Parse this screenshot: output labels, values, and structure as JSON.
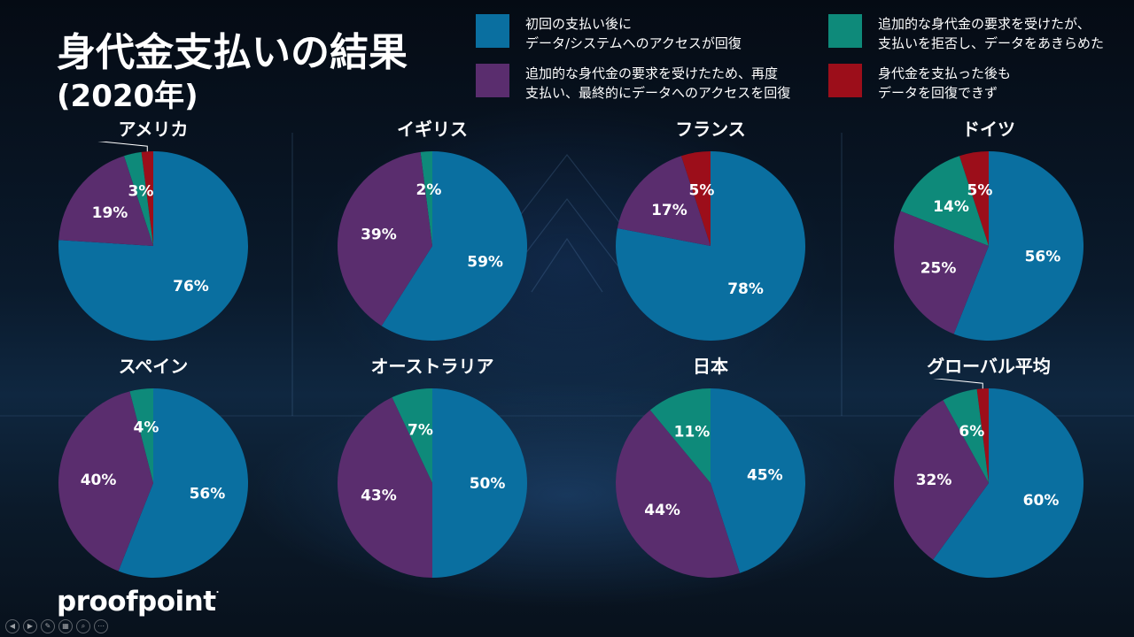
{
  "title": "身代金支払いの結果",
  "subtitle": "(2020年)",
  "colors": {
    "recovered": "#0a6fa0",
    "paid_more_recovered": "#5a2d6e",
    "refused_more": "#0e8a7a",
    "not_recovered": "#9c0e1a"
  },
  "legend": [
    {
      "key": "recovered",
      "lines": [
        "初回の支払い後に",
        "データ/システムへのアクセスが回復"
      ]
    },
    {
      "key": "refused_more",
      "lines": [
        "追加的な身代金の要求を受けたが、",
        "支払いを拒否し、データをあきらめた"
      ]
    },
    {
      "key": "paid_more_recovered",
      "lines": [
        "追加的な身代金の要求を受けたため、再度",
        "支払い、最終的にデータへのアクセスを回復"
      ]
    },
    {
      "key": "not_recovered",
      "lines": [
        "身代金を支払った後も",
        "データを回復できず"
      ]
    }
  ],
  "chart_data": [
    {
      "type": "pie",
      "title": "アメリカ",
      "series_keys": [
        "recovered",
        "paid_more_recovered",
        "refused_more",
        "not_recovered"
      ],
      "values": [
        76,
        19,
        3,
        2
      ],
      "labels": [
        "76%",
        "19%",
        "3%",
        "2%"
      ]
    },
    {
      "type": "pie",
      "title": "イギリス",
      "series_keys": [
        "recovered",
        "paid_more_recovered",
        "refused_more"
      ],
      "values": [
        59,
        39,
        2
      ],
      "labels": [
        "59%",
        "39%",
        "2%"
      ]
    },
    {
      "type": "pie",
      "title": "フランス",
      "series_keys": [
        "recovered",
        "paid_more_recovered",
        "not_recovered"
      ],
      "values": [
        78,
        17,
        5
      ],
      "labels": [
        "78%",
        "17%",
        "5%"
      ]
    },
    {
      "type": "pie",
      "title": "ドイツ",
      "series_keys": [
        "recovered",
        "paid_more_recovered",
        "refused_more",
        "not_recovered"
      ],
      "values": [
        56,
        25,
        14,
        5
      ],
      "labels": [
        "56%",
        "25%",
        "14%",
        "5%"
      ]
    },
    {
      "type": "pie",
      "title": "スペイン",
      "series_keys": [
        "recovered",
        "paid_more_recovered",
        "refused_more"
      ],
      "values": [
        56,
        40,
        4
      ],
      "labels": [
        "56%",
        "40%",
        "4%"
      ]
    },
    {
      "type": "pie",
      "title": "オーストラリア",
      "series_keys": [
        "recovered",
        "paid_more_recovered",
        "refused_more"
      ],
      "values": [
        50,
        43,
        7
      ],
      "labels": [
        "50%",
        "43%",
        "7%"
      ]
    },
    {
      "type": "pie",
      "title": "日本",
      "series_keys": [
        "recovered",
        "paid_more_recovered",
        "refused_more"
      ],
      "values": [
        45,
        44,
        11
      ],
      "labels": [
        "45%",
        "44%",
        "11%"
      ]
    },
    {
      "type": "pie",
      "title": "グローバル平均",
      "series_keys": [
        "recovered",
        "paid_more_recovered",
        "refused_more",
        "not_recovered"
      ],
      "values": [
        60,
        32,
        6,
        2
      ],
      "labels": [
        "60%",
        "32%",
        "6%",
        "2%"
      ]
    }
  ],
  "logo": {
    "text": "proofpoint",
    "mark": "."
  },
  "toolbar": [
    {
      "name": "prev-slide-icon",
      "glyph": "◀"
    },
    {
      "name": "next-slide-icon",
      "glyph": "▶"
    },
    {
      "name": "pen-icon",
      "glyph": "✎"
    },
    {
      "name": "slides-grid-icon",
      "glyph": "▦"
    },
    {
      "name": "zoom-icon",
      "glyph": "⌕"
    },
    {
      "name": "more-icon",
      "glyph": "⋯"
    }
  ]
}
